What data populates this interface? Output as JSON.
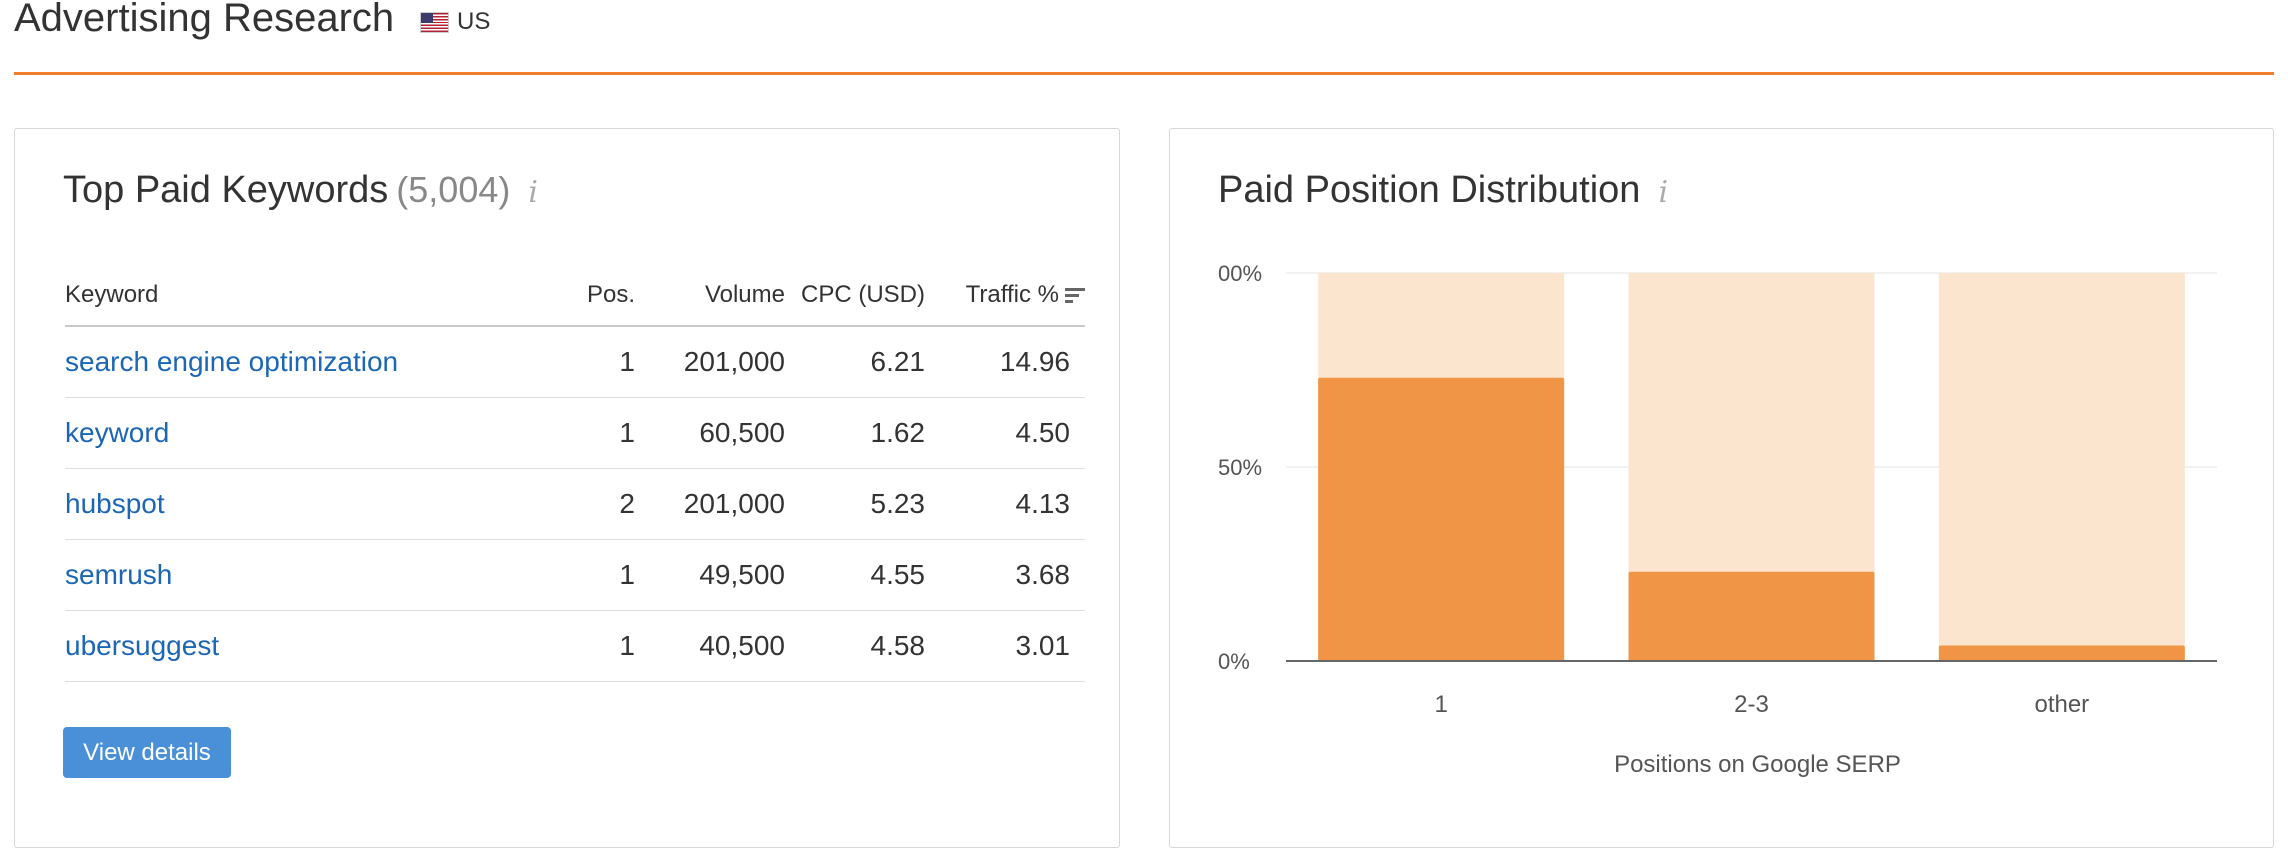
{
  "header": {
    "title": "Advertising Research",
    "country_code": "US"
  },
  "keywords_card": {
    "title": "Top Paid Keywords",
    "count": "(5,004)",
    "info_icon": "i",
    "columns": [
      "Keyword",
      "Pos.",
      "Volume",
      "CPC (USD)",
      "Traffic %"
    ],
    "rows": [
      {
        "keyword": "search engine optimization",
        "pos": "1",
        "volume": "201,000",
        "cpc": "6.21",
        "traffic": "14.96"
      },
      {
        "keyword": "keyword",
        "pos": "1",
        "volume": "60,500",
        "cpc": "1.62",
        "traffic": "4.50"
      },
      {
        "keyword": "hubspot",
        "pos": "2",
        "volume": "201,000",
        "cpc": "5.23",
        "traffic": "4.13"
      },
      {
        "keyword": "semrush",
        "pos": "1",
        "volume": "49,500",
        "cpc": "4.55",
        "traffic": "3.68"
      },
      {
        "keyword": "ubersuggest",
        "pos": "1",
        "volume": "40,500",
        "cpc": "4.58",
        "traffic": "3.01"
      }
    ],
    "view_details_label": "View details"
  },
  "distribution_card": {
    "title": "Paid Position Distribution",
    "info_icon": "i"
  },
  "chart_data": {
    "type": "bar",
    "title": "Paid Position Distribution",
    "categories": [
      "1",
      "2-3",
      "other"
    ],
    "values": [
      73,
      23,
      4
    ],
    "xlabel": "Positions on Google SERP",
    "ylabel": "",
    "ylim": [
      0,
      100
    ],
    "y_tick_labels": [
      "00%",
      "50%",
      "0%"
    ],
    "grid": true,
    "colors": {
      "bar": "#f09446",
      "background_bar": "#fbe5cf"
    }
  },
  "colors": {
    "accent": "#f07e2a",
    "link": "#1b67b5",
    "button": "#4a90d9"
  }
}
